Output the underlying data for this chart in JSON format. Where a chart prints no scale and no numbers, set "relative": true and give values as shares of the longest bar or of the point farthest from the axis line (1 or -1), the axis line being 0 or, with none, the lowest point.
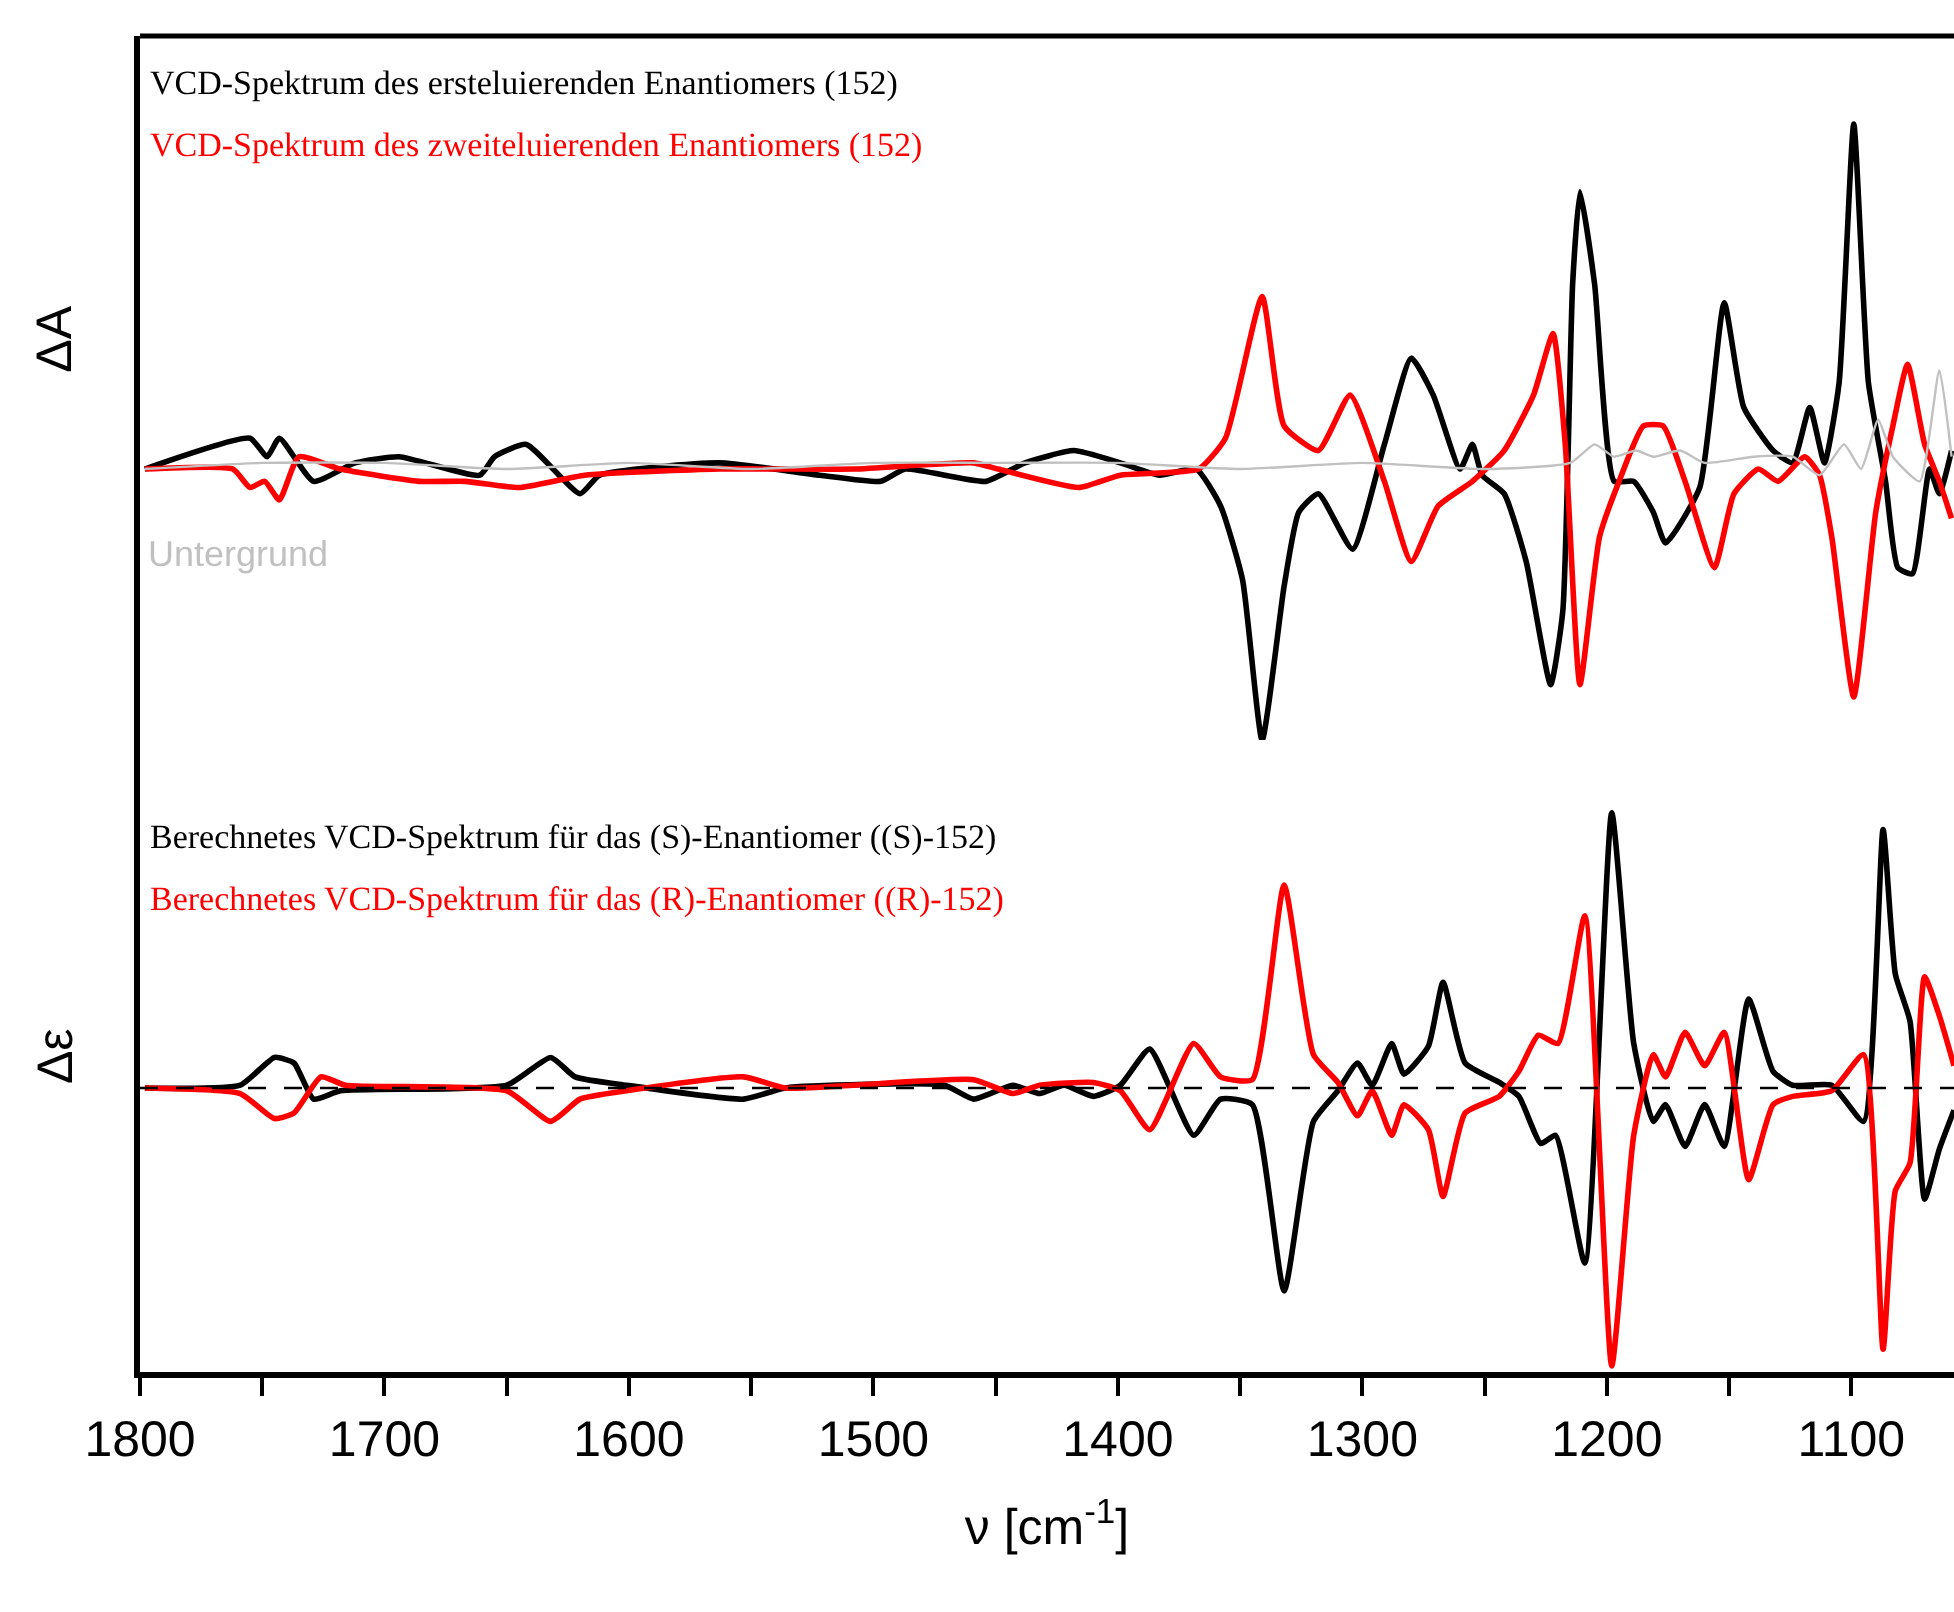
{
  "chart_data": [
    {
      "type": "line",
      "relative": true,
      "ylabel": "ΔA",
      "xlim": [
        1800,
        1058
      ],
      "tick_labels": false,
      "legend": "top left",
      "marker": "none",
      "line_style": "solid",
      "series": [
        {
          "name": "VCD-Spektrum des ersteluierenden Enantiomers (152)",
          "color": "#000000",
          "x": [
            1798,
            1755,
            1748,
            1743,
            1729,
            1712,
            1694,
            1661,
            1655,
            1642,
            1620,
            1612,
            1563,
            1522,
            1497,
            1487,
            1454,
            1438,
            1418,
            1399,
            1383,
            1368,
            1358,
            1349,
            1341,
            1332,
            1326,
            1318,
            1304,
            1291,
            1280,
            1271,
            1260,
            1255,
            1251,
            1242,
            1233,
            1223,
            1218,
            1214,
            1211,
            1205,
            1197,
            1189,
            1181,
            1176,
            1162,
            1152,
            1144,
            1132,
            1124,
            1117,
            1111,
            1105,
            1099,
            1093,
            1086,
            1081,
            1075,
            1068,
            1064,
            1059
          ],
          "values": [
            0.44,
            0.49,
            0.46,
            0.49,
            0.42,
            0.45,
            0.46,
            0.43,
            0.46,
            0.48,
            0.4,
            0.43,
            0.45,
            0.43,
            0.42,
            0.44,
            0.42,
            0.45,
            0.47,
            0.45,
            0.43,
            0.44,
            0.38,
            0.26,
            0,
            0.25,
            0.37,
            0.4,
            0.31,
            0.48,
            0.62,
            0.56,
            0.44,
            0.48,
            0.43,
            0.4,
            0.29,
            0.09,
            0.21,
            0.74,
            0.89,
            0.74,
            0.42,
            0.42,
            0.37,
            0.32,
            0.41,
            0.71,
            0.54,
            0.47,
            0.45,
            0.54,
            0.45,
            0.58,
            1,
            0.58,
            0.42,
            0.28,
            0.27,
            0.44,
            0.4,
            0.47
          ]
        },
        {
          "name": "VCD-Spektrum des zweiteluierenden Enantiomers (152)",
          "color": "#ff0000",
          "x": [
            1798,
            1762,
            1755,
            1749,
            1743,
            1735,
            1718,
            1686,
            1667,
            1645,
            1618,
            1563,
            1508,
            1459,
            1449,
            1416,
            1399,
            1367,
            1356,
            1341,
            1332,
            1318,
            1305,
            1291,
            1280,
            1269,
            1255,
            1242,
            1230,
            1222,
            1217,
            1211,
            1203,
            1195,
            1185,
            1177,
            1168,
            1156,
            1148,
            1138,
            1130,
            1119,
            1113,
            1108,
            1099,
            1090,
            1083,
            1077,
            1070,
            1064,
            1059
          ],
          "values": [
            0.44,
            0.44,
            0.41,
            0.42,
            0.39,
            0.46,
            0.44,
            0.42,
            0.42,
            0.41,
            0.43,
            0.44,
            0.44,
            0.45,
            0.44,
            0.41,
            0.43,
            0.44,
            0.49,
            0.72,
            0.51,
            0.47,
            0.56,
            0.42,
            0.29,
            0.38,
            0.42,
            0.47,
            0.56,
            0.66,
            0.48,
            0.09,
            0.33,
            0.42,
            0.51,
            0.51,
            0.42,
            0.28,
            0.4,
            0.44,
            0.42,
            0.46,
            0.43,
            0.33,
            0.07,
            0.37,
            0.51,
            0.61,
            0.48,
            0.42,
            0.36
          ]
        },
        {
          "name": "Untergrund",
          "color": "#c0c0c0",
          "x": [
            1798,
            1750,
            1700,
            1650,
            1600,
            1550,
            1500,
            1450,
            1400,
            1350,
            1300,
            1250,
            1215,
            1205,
            1197,
            1188,
            1181,
            1170,
            1160,
            1140,
            1124,
            1113,
            1103,
            1096,
            1089,
            1083,
            1072,
            1064,
            1059
          ],
          "values": [
            0.44,
            0.45,
            0.45,
            0.44,
            0.45,
            0.44,
            0.45,
            0.45,
            0.45,
            0.44,
            0.45,
            0.44,
            0.45,
            0.48,
            0.46,
            0.47,
            0.46,
            0.47,
            0.45,
            0.46,
            0.46,
            0.43,
            0.48,
            0.44,
            0.52,
            0.46,
            0.42,
            0.6,
            0.46
          ]
        }
      ]
    },
    {
      "type": "line",
      "relative": true,
      "ylabel": "Δε",
      "xlabel": "ν [cm$^{-1}$]",
      "xlim": [
        1800,
        1058
      ],
      "tick_labels": "x",
      "legend": "top left",
      "marker": "none",
      "line_style": "solid",
      "xticks": [
        1800,
        {
          "value": 1750,
          "label": null
        },
        1700,
        {
          "value": 1650,
          "label": null
        },
        1600,
        {
          "value": 1550,
          "label": null
        },
        1500,
        {
          "value": 1450,
          "label": null
        },
        1400,
        {
          "value": 1350,
          "label": null
        },
        1300,
        {
          "value": 1250,
          "label": null
        },
        1200,
        {
          "value": 1150,
          "label": null
        },
        1100
      ],
      "ref_lines": [
        {
          "axis": "y",
          "value": 0,
          "color": "#000000",
          "line_style": "dashed"
        }
      ],
      "series": [
        {
          "name": "Berechnetes VCD-Spektrum für das (S)-Enantiomer ((S)-152)",
          "color": "#000000",
          "x": [
            1798,
            1759,
            1745,
            1737,
            1729,
            1718,
            1650,
            1632,
            1622,
            1601,
            1553,
            1536,
            1471,
            1459,
            1443,
            1432,
            1422,
            1410,
            1399,
            1387,
            1369,
            1358,
            1345,
            1332,
            1320,
            1310,
            1302,
            1296,
            1288,
            1283,
            1273,
            1267,
            1258,
            1244,
            1236,
            1227,
            1221,
            1209,
            1198,
            1189,
            1181,
            1176,
            1168,
            1160,
            1152,
            1142,
            1132,
            1124,
            1108,
            1095,
            1087,
            1082,
            1076,
            1070,
            1064,
            1058
          ],
          "values": [
            0,
            0.01,
            0.11,
            0.09,
            -0.04,
            -0.01,
            0.01,
            0.11,
            0.04,
            0.01,
            -0.04,
            0,
            0.01,
            -0.04,
            0.01,
            -0.02,
            0.01,
            -0.03,
            0.01,
            0.14,
            -0.17,
            -0.04,
            -0.06,
            -0.73,
            -0.12,
            -0.01,
            0.09,
            0.01,
            0.16,
            0.05,
            0.15,
            0.38,
            0.09,
            0.02,
            -0.03,
            -0.2,
            -0.17,
            -0.63,
            0.99,
            0.16,
            -0.12,
            -0.06,
            -0.21,
            -0.06,
            -0.21,
            0.32,
            0.06,
            0.01,
            0.01,
            -0.12,
            0.93,
            0.41,
            0.24,
            -0.4,
            -0.22,
            -0.08
          ]
        },
        {
          "name": "Berechnetes VCD-Spektrum für das (R)-Enantiomer ((R)-152)",
          "color": "#ff0000",
          "x": [
            1798,
            1759,
            1745,
            1737,
            1726,
            1716,
            1650,
            1632,
            1620,
            1601,
            1553,
            1536,
            1459,
            1443,
            1432,
            1410,
            1399,
            1387,
            1369,
            1358,
            1345,
            1332,
            1320,
            1310,
            1302,
            1296,
            1288,
            1283,
            1273,
            1267,
            1258,
            1244,
            1236,
            1228,
            1220,
            1209,
            1198,
            1189,
            1181,
            1176,
            1168,
            1160,
            1152,
            1142,
            1132,
            1124,
            1108,
            1095,
            1087,
            1082,
            1076,
            1070,
            1064,
            1058
          ],
          "values": [
            0,
            -0.02,
            -0.11,
            -0.09,
            0.04,
            0.01,
            -0.01,
            -0.12,
            -0.04,
            -0.01,
            0.04,
            0,
            0.03,
            -0.02,
            0.01,
            0.02,
            -0.01,
            -0.15,
            0.16,
            0.04,
            0.03,
            0.73,
            0.12,
            0.02,
            -0.1,
            -0.01,
            -0.17,
            -0.06,
            -0.15,
            -0.39,
            -0.09,
            -0.03,
            0.06,
            0.19,
            0.16,
            0.62,
            -1,
            -0.17,
            0.12,
            0.04,
            0.2,
            0.08,
            0.2,
            -0.33,
            -0.06,
            -0.03,
            -0.01,
            0.12,
            -0.94,
            -0.37,
            -0.27,
            0.4,
            0.26,
            0.08
          ]
        }
      ]
    }
  ]
}
